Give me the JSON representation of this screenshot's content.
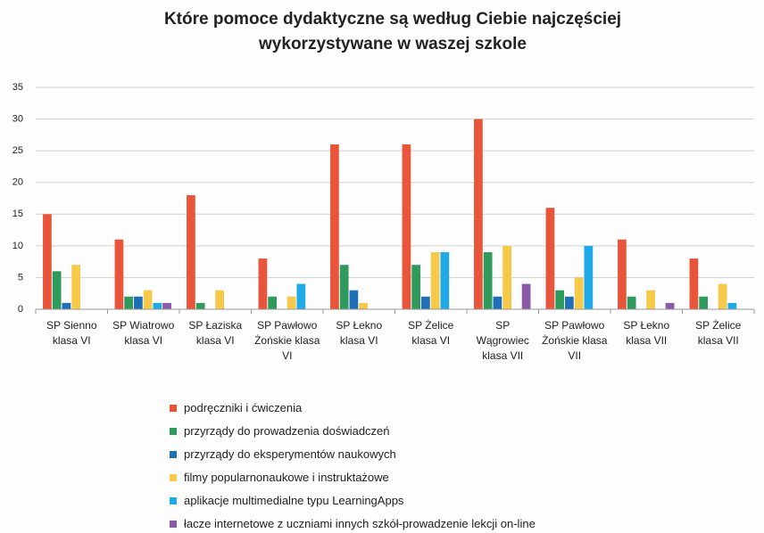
{
  "chart_data": {
    "type": "bar",
    "title": "Które pomoce dydaktyczne są według Ciebie najczęściej wykorzystywane w waszej szkole",
    "categories": [
      "SP Sienno klasa VI",
      "SP Wiatrowo klasa VI",
      "SP Łaziska klasa VI",
      "SP Pawłowo Żońskie klasa VI",
      "SP Łekno klasa VI",
      "SP Żelice klasa VI",
      "SP Wągrowiec klasa VII",
      "SP Pawłowo Żońskie klasa VII",
      "SP Łekno klasa VII",
      "SP Żelice klasa VII"
    ],
    "series": [
      {
        "name": "podręczniki i ćwiczenia",
        "color": "#e8553a",
        "values": [
          15,
          11,
          18,
          8,
          26,
          26,
          30,
          16,
          11,
          8
        ]
      },
      {
        "name": "przyrządy do prowadzenia doświadczeń",
        "color": "#2e9a5c",
        "values": [
          6,
          2,
          1,
          2,
          7,
          7,
          9,
          3,
          2,
          2
        ]
      },
      {
        "name": "przyrządy do eksperymentów naukowych",
        "color": "#1f6fb8",
        "values": [
          1,
          2,
          0,
          0,
          3,
          2,
          2,
          2,
          0,
          0
        ]
      },
      {
        "name": "filmy popularnonaukowe i instruktażowe",
        "color": "#f7c948",
        "values": [
          7,
          3,
          3,
          2,
          1,
          9,
          10,
          5,
          3,
          4
        ]
      },
      {
        "name": "aplikacje multimedialne typu LearningApps",
        "color": "#1fa9e6",
        "values": [
          0,
          1,
          0,
          4,
          0,
          9,
          0,
          10,
          0,
          1
        ]
      },
      {
        "name": "łacze internetowe z uczniami innych szkół-prowadzenie lekcji on-line",
        "color": "#8a5aa8",
        "values": [
          0,
          1,
          0,
          0,
          0,
          0,
          4,
          0,
          1,
          0
        ]
      }
    ],
    "ylim": [
      0,
      35
    ],
    "yticks": [
      0,
      5,
      10,
      15,
      20,
      25,
      30,
      35
    ],
    "grid": true
  }
}
